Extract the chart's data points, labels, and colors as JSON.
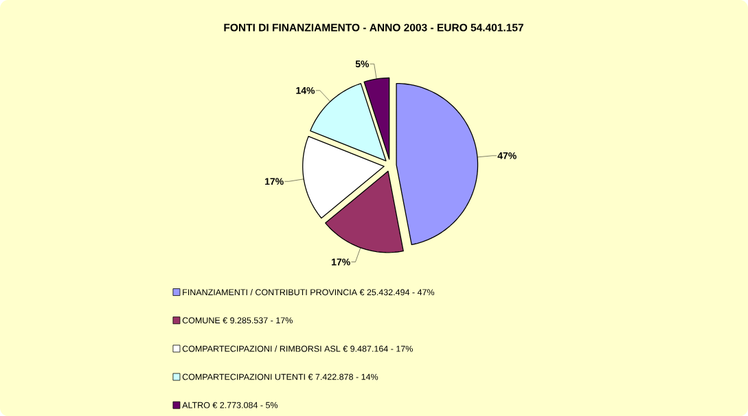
{
  "chart_data": {
    "type": "pie",
    "title": "FONTI DI FINANZIAMENTO - ANNO 2003 - EURO 54.401.157",
    "categories": [
      "FINANZIAMENTI / CONTRIBUTI PROVINCIA € 25.432.494 - 47%",
      "COMUNE € 9.285.537 - 17%",
      "COMPARTECIPAZIONI / RIMBORSI ASL € 9.487.164 - 17%",
      "COMPARTECIPAZIONI UTENTI € 7.422.878 - 14%",
      "ALTRO € 2.773.084 - 5%"
    ],
    "values": [
      47,
      17,
      17,
      14,
      5
    ],
    "value_labels": [
      "47%",
      "17%",
      "17%",
      "14%",
      "5%"
    ],
    "colors": [
      "#9999ff",
      "#993366",
      "#ffffff",
      "#ccffff",
      "#660066"
    ],
    "legend": "bottom"
  }
}
